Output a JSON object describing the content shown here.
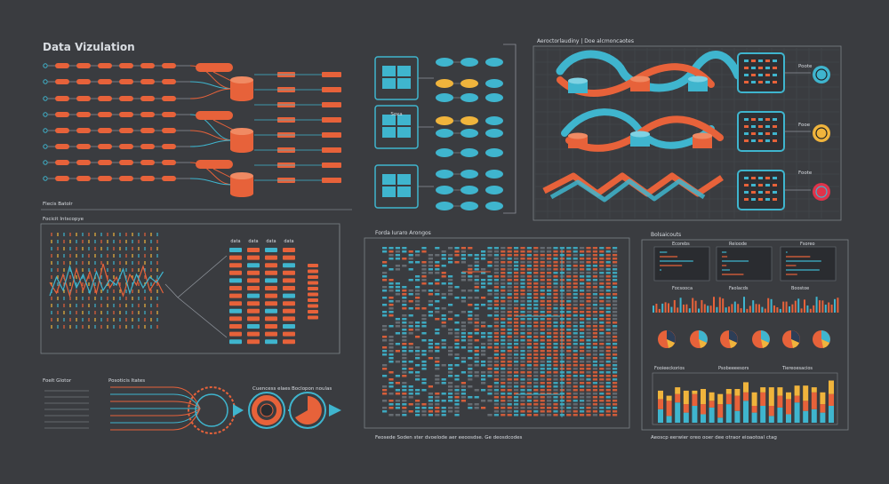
{
  "header": {
    "title": "Data Vizulation"
  },
  "panels": {
    "pipeline": {
      "footer_label": "Flecis Batolr"
    },
    "line_table": {
      "label": "Focicit Intscopye",
      "columns": [
        "data",
        "data",
        "data",
        "data"
      ]
    },
    "flow_circles": {
      "labels": [
        "Foelt Glotor",
        "Posoticis Itates",
        "Cuencess elaes",
        "Boclopon noulas"
      ]
    },
    "tiles": {
      "tile_labels": [
        "",
        "Soxa",
        ""
      ]
    },
    "cycle": {
      "label": "Aeroctorlaudiny | Doe alcmoncaotes",
      "side_labels": [
        "Poote",
        "Fooe",
        "Foote"
      ]
    },
    "heatmap": {
      "title": "Forda Iuraro Arongos",
      "footer": "Feosede Soden ster dvoelode aer eeoosdse. Ge deosdcodes"
    },
    "dashboard": {
      "title": "Bolsaicouts",
      "mini_titles": [
        "Ecorebs",
        "Reioode",
        "Fsoreo"
      ],
      "row2_titles": [
        "Focsooca",
        "Faolacds",
        "Boostoe"
      ],
      "bar_titles": [
        "Fooieeckorios",
        "Psobeeeesors",
        "Tiereoesacios"
      ],
      "footer": "Aeoscp eerwier oreo ooer dee otraor eioaotoal ctag"
    }
  },
  "chart_data": [
    {
      "type": "line",
      "title": "",
      "series": [
        {
          "values": [
            9,
            5,
            12,
            4,
            14,
            6,
            13,
            5,
            16,
            7,
            11,
            4,
            12,
            8,
            15,
            6,
            10,
            5
          ]
        },
        {
          "values": [
            4,
            11,
            6,
            15,
            7,
            12,
            5,
            13,
            6,
            10,
            8,
            14,
            5,
            12,
            7,
            11,
            9,
            13
          ]
        }
      ]
    },
    {
      "type": "bar",
      "title": "",
      "stacked": true,
      "values": [
        [
          8,
          6,
          5
        ],
        [
          4,
          9,
          3
        ],
        [
          12,
          5,
          4
        ],
        [
          6,
          5,
          8
        ],
        [
          10,
          7,
          2
        ],
        [
          5,
          6,
          9
        ],
        [
          9,
          4,
          5
        ],
        [
          3,
          8,
          6
        ],
        [
          11,
          6,
          3
        ],
        [
          7,
          9,
          4
        ],
        [
          13,
          5,
          6
        ],
        [
          6,
          4,
          8
        ],
        [
          10,
          8,
          3
        ],
        [
          4,
          6,
          11
        ],
        [
          9,
          7,
          5
        ],
        [
          5,
          9,
          4
        ],
        [
          12,
          4,
          6
        ],
        [
          7,
          6,
          9
        ],
        [
          8,
          10,
          3
        ],
        [
          6,
          5,
          7
        ],
        [
          10,
          7,
          8
        ]
      ]
    }
  ],
  "colors": {
    "bg": "#3a3c40",
    "orange": "#e7623a",
    "teal": "#3fb5ce",
    "yellow": "#f0b43c",
    "line": "#8e939a",
    "text": "#d9dde2"
  }
}
